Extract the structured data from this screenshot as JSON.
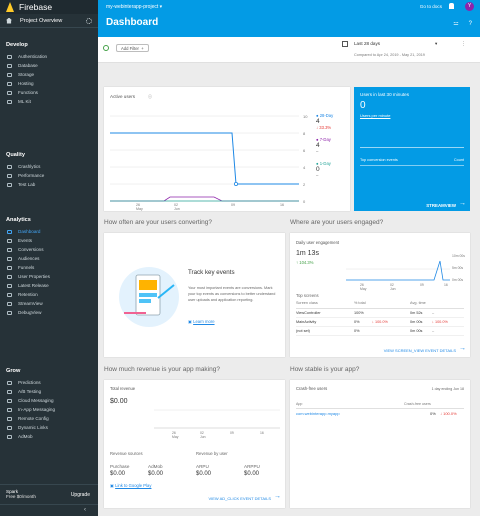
{
  "sidebar": {
    "brand": "Firebase",
    "project_overview": "Project Overview",
    "sections": [
      {
        "title": "Develop",
        "items": [
          "Authentication",
          "Database",
          "Storage",
          "Hosting",
          "Functions",
          "ML Kit"
        ]
      },
      {
        "title": "Quality",
        "items": [
          "Crashlytics",
          "Performance",
          "Test Lab"
        ]
      },
      {
        "title": "Analytics",
        "items": [
          "Dashboard",
          "Events",
          "Conversions",
          "Audiences",
          "Funnels",
          "User Properties",
          "Latest Release",
          "Retention",
          "StreamView",
          "DebugView"
        ]
      },
      {
        "title": "Grow",
        "items": [
          "Predictions",
          "A/B Testing",
          "Cloud Messaging",
          "In-App Messaging",
          "Remote Config",
          "Dynamic Links",
          "AdMob"
        ]
      }
    ],
    "spark_plan": "Spark",
    "spark_price": "Free $0/month",
    "upgrade": "Upgrade",
    "collapse": "‹"
  },
  "topbar": {
    "project": "my-webinterapp-project ▾",
    "docs": "Go to docs",
    "avatar": "Y",
    "title": "Dashboard"
  },
  "filter": {
    "add_filter": "Add Filter",
    "date_range": "Last 28 days",
    "compare": "Compared to Apr 24, 2019 - May 21, 2019"
  },
  "active_users": {
    "title": "Active users",
    "y_ticks": [
      "10",
      "8",
      "6",
      "4",
      "2",
      "0"
    ],
    "x_ticks": [
      "26\nMay",
      "02\nJun",
      "09",
      "16"
    ],
    "legend": [
      {
        "label": "28-Day",
        "value": "4",
        "change": "↓ 33.3%"
      },
      {
        "label": "7-Day",
        "value": "4",
        "change": "–"
      },
      {
        "label": "1-Day",
        "value": "0",
        "change": "–"
      }
    ]
  },
  "stream": {
    "title": "Users in last 30 minutes",
    "value": "0",
    "per_minute": "Users per minute",
    "top_events": "Top conversion events",
    "count": "Count",
    "link": "STREAMVIEW"
  },
  "conversions": {
    "heading": "How often are your users converting?",
    "title": "Track key events",
    "body": "Your most important events are conversions. Mark your top events as conversions to better understand user uploads and application reporting.",
    "link": "Learn more"
  },
  "engagement": {
    "heading": "Where are your users engaged?",
    "title": "Daily user engagement",
    "value": "1m 13s",
    "change": "↑ 104.3%",
    "y_ticks": [
      "10m 00s",
      "5m 00s",
      "0m 00s"
    ],
    "x_ticks": [
      "26\nMay",
      "02\nJun",
      "09",
      "16"
    ],
    "top_screens": "Top screens",
    "cols": [
      "Screen class",
      "% total",
      "Avg. time"
    ],
    "rows": [
      {
        "name": "ViewController",
        "pct": "100%",
        "time": "0m 52s",
        "time_change": "–"
      },
      {
        "name": "MainActivity",
        "pct": "0%",
        "pct_change": "↓ 100.0%",
        "time": "0m 00s",
        "time_change": "↓ 100.0%"
      },
      {
        "name": "(not set)",
        "pct": "0%",
        "time": "0m 00s",
        "time_change": "–"
      }
    ],
    "link": "VIEW SCREEN_VIEW EVENT DETAILS"
  },
  "revenue": {
    "heading": "How much revenue is your app making?",
    "title": "Total revenue",
    "value": "$0.00",
    "x_ticks": [
      "26\nMay",
      "02\nJun",
      "09",
      "16"
    ],
    "sources_title": "Revenue sources",
    "by_user_title": "Revenue by user",
    "sources": [
      {
        "label": "Purchase",
        "value": "$0.00"
      },
      {
        "label": "AdMob",
        "value": "$0.00"
      }
    ],
    "by_user": [
      {
        "label": "ARPU",
        "value": "$0.00"
      },
      {
        "label": "ARPPU",
        "value": "$0.00"
      }
    ],
    "play_link": "Link to Google Play",
    "details_link": "VIEW AD_CLICK EVENT DETAILS"
  },
  "stability": {
    "heading": "How stable is your app?",
    "title": "Crash-free users",
    "trend": "1 day ending Jun 18",
    "app_col": "App",
    "crash_col": "Crash-free users",
    "app_name": "com.webinterapp.myapp",
    "pct": "0%",
    "change": "↓ 100.0%"
  }
}
